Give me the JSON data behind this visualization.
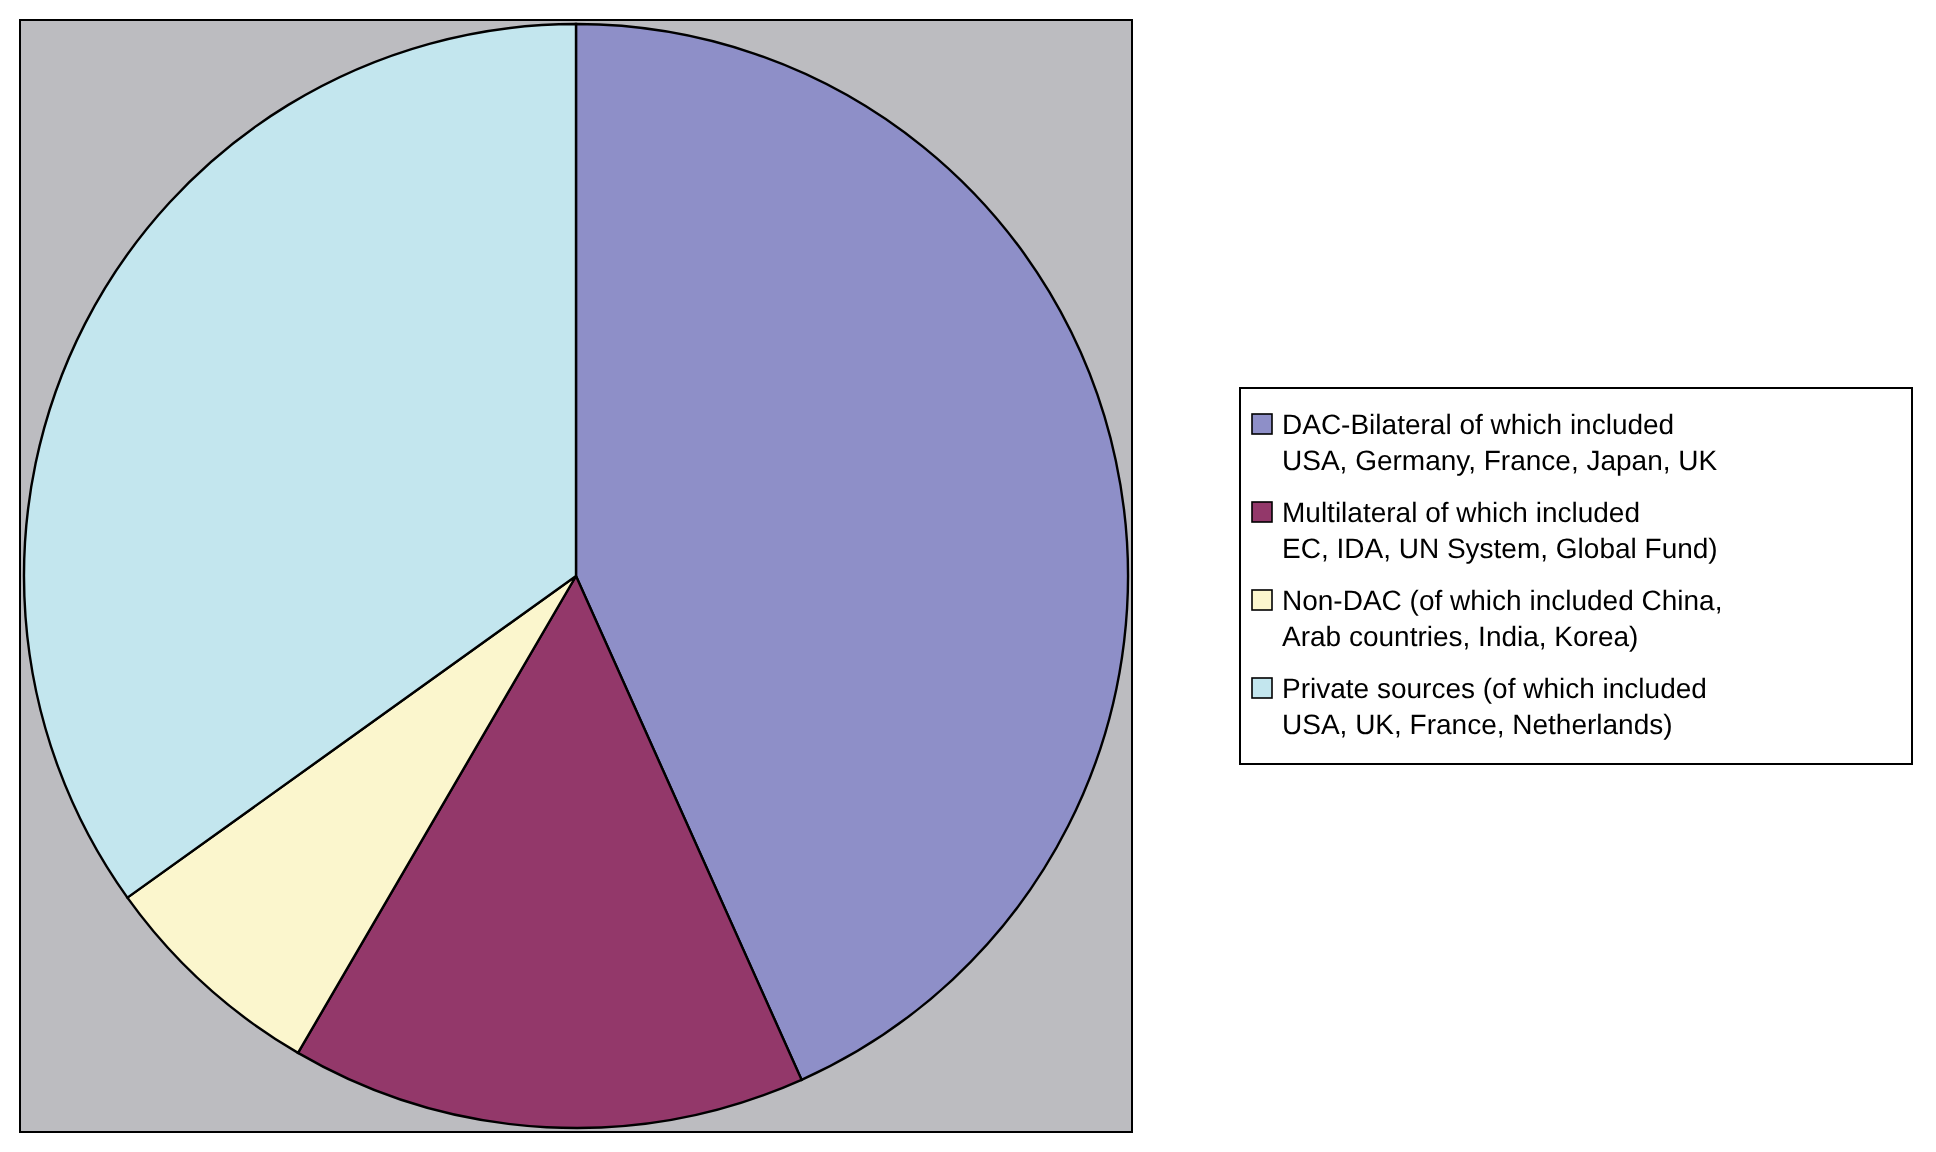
{
  "chart_data": {
    "type": "pie",
    "categories": [
      "DAC-Bilateral of which included USA, Germany, France, Japan, UK",
      "Multilateral of which included  EC, IDA, UN System, Global Fund)",
      "Non-DAC (of which included China, Arab countries, India, Korea)",
      "Private sources (of which included USA, UK, France, Netherlands)"
    ],
    "values": [
      43.3,
      15.1,
      6.7,
      34.9
    ],
    "colors": [
      "#8e8fc8",
      "#93386a",
      "#fbf6cd",
      "#c3e6ee"
    ],
    "legend": "right"
  }
}
